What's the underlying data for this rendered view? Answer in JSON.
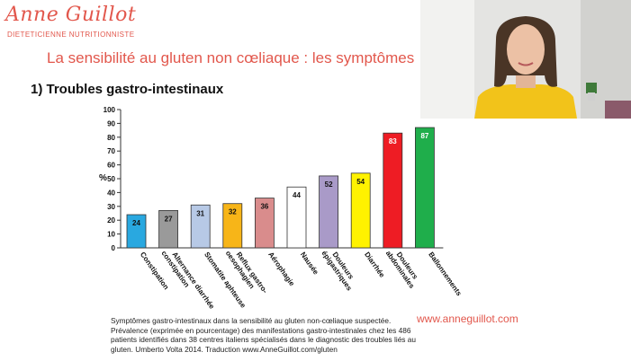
{
  "brand": {
    "name": "Anne Guillot",
    "tagline": "DIETETICIENNE NUTRITIONNISTE",
    "color": "#e2574c"
  },
  "slide": {
    "title": "La sensibilité au gluten non cœliaque : les symptômes",
    "section": "1)  Troubles gastro-intestinaux"
  },
  "caption": "Symptômes gastro-intestinaux  dans la sensibilité au gluten non-cœliaque  suspectée. Prévalence (exprimée en pourcentage)  des manifestations  gastro-intestinales  chez les 486 patients identifiés dans 38 centres italiens spécialisés dans le diagnostic  des troubles liés au gluten.  Umberto Volta 2014. Traduction  www.AnneGuillot.com/gluten",
  "website": "www.anneguillot.com",
  "chart_data": {
    "type": "bar",
    "ylabel": "%",
    "ylim": [
      0,
      100
    ],
    "yticks": [
      0,
      10,
      20,
      30,
      40,
      50,
      60,
      70,
      80,
      90,
      100
    ],
    "grid": false,
    "legend": "none",
    "categories": [
      "Constipation",
      "Alternance diarrhée constipation",
      "Stomatite aphteuse",
      "Reflux gastro-oesophagien",
      "Aérophagie",
      "Nausée",
      "Douleurs épigastriques",
      "Diarrhée",
      "Douleurs abdominales",
      "Ballonnements"
    ],
    "tick_lines": [
      [
        "Constipation"
      ],
      [
        "Alternance diarrhée",
        "constipation"
      ],
      [
        "Stomatite aphteuse"
      ],
      [
        "Reflux gastro-",
        "oesophagien"
      ],
      [
        "Aérophagie"
      ],
      [
        "Nausée"
      ],
      [
        "Douleurs",
        "épigastriques"
      ],
      [
        "Diarrhée"
      ],
      [
        "Douleurs",
        "abdominales"
      ],
      [
        "Ballonnements"
      ]
    ],
    "values": [
      24,
      27,
      31,
      32,
      36,
      44,
      52,
      54,
      83,
      87
    ],
    "colors": [
      "#29a8e0",
      "#9a9a9a",
      "#b7c9e6",
      "#f7b518",
      "#d98c8c",
      "#ffffff",
      "#a99ac8",
      "#fff200",
      "#ee1c24",
      "#1fae4b"
    ]
  }
}
